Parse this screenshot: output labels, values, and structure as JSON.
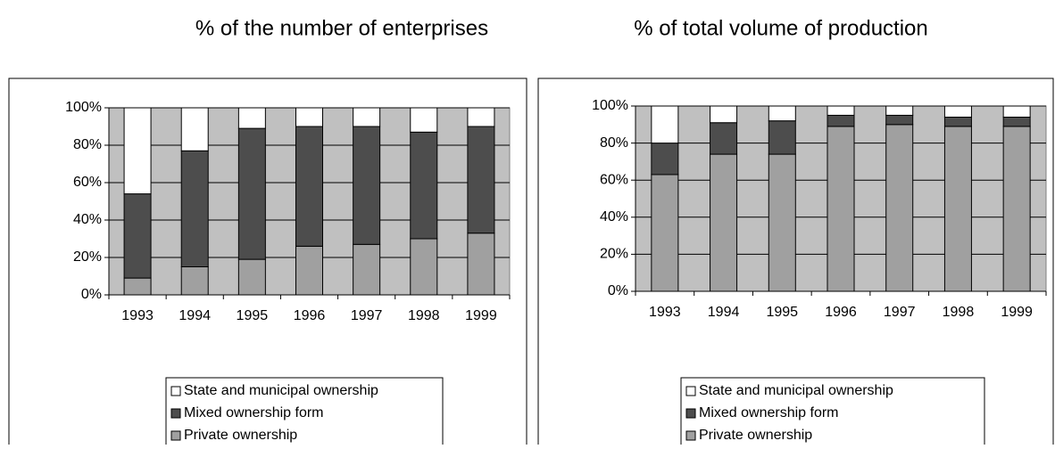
{
  "chart_data": [
    {
      "type": "stacked_bar",
      "title": "% of the number of enterprises",
      "categories": [
        "1993",
        "1994",
        "1995",
        "1996",
        "1997",
        "1998",
        "1999"
      ],
      "series": [
        {
          "name": "Private ownership",
          "color": "#a0a0a0",
          "values": [
            9,
            15,
            19,
            26,
            27,
            30,
            33
          ]
        },
        {
          "name": "Mixed ownership form",
          "color": "#4d4d4d",
          "values": [
            45,
            62,
            70,
            64,
            63,
            57,
            57
          ]
        },
        {
          "name": "State and municipal ownership",
          "color": "#ffffff",
          "values": [
            46,
            23,
            11,
            10,
            10,
            13,
            10
          ]
        }
      ],
      "ylim": [
        0,
        100
      ],
      "yticks": [
        {
          "value": 0,
          "label": "0%"
        },
        {
          "value": 20,
          "label": "20%"
        },
        {
          "value": 40,
          "label": "40%"
        },
        {
          "value": 60,
          "label": "60%"
        },
        {
          "value": 80,
          "label": "80%"
        },
        {
          "value": 100,
          "label": "100%"
        }
      ],
      "grid": true,
      "legend": "bottom"
    },
    {
      "type": "stacked_bar",
      "title": "% of total volume of production",
      "categories": [
        "1993",
        "1994",
        "1995",
        "1996",
        "1997",
        "1998",
        "1999"
      ],
      "series": [
        {
          "name": "Private ownership",
          "color": "#a0a0a0",
          "values": [
            63,
            74,
            74,
            89,
            90,
            89,
            89
          ]
        },
        {
          "name": "Mixed ownership form",
          "color": "#4d4d4d",
          "values": [
            17,
            17,
            18,
            6,
            5,
            5,
            5
          ]
        },
        {
          "name": "State and municipal ownership",
          "color": "#ffffff",
          "values": [
            20,
            9,
            8,
            5,
            5,
            6,
            6
          ]
        }
      ],
      "ylim": [
        0,
        100
      ],
      "yticks": [
        {
          "value": 0,
          "label": "0%"
        },
        {
          "value": 20,
          "label": "20%"
        },
        {
          "value": 40,
          "label": "40%"
        },
        {
          "value": 60,
          "label": "60%"
        },
        {
          "value": 80,
          "label": "80%"
        },
        {
          "value": 100,
          "label": "100%"
        }
      ],
      "grid": true,
      "legend": "bottom"
    }
  ]
}
